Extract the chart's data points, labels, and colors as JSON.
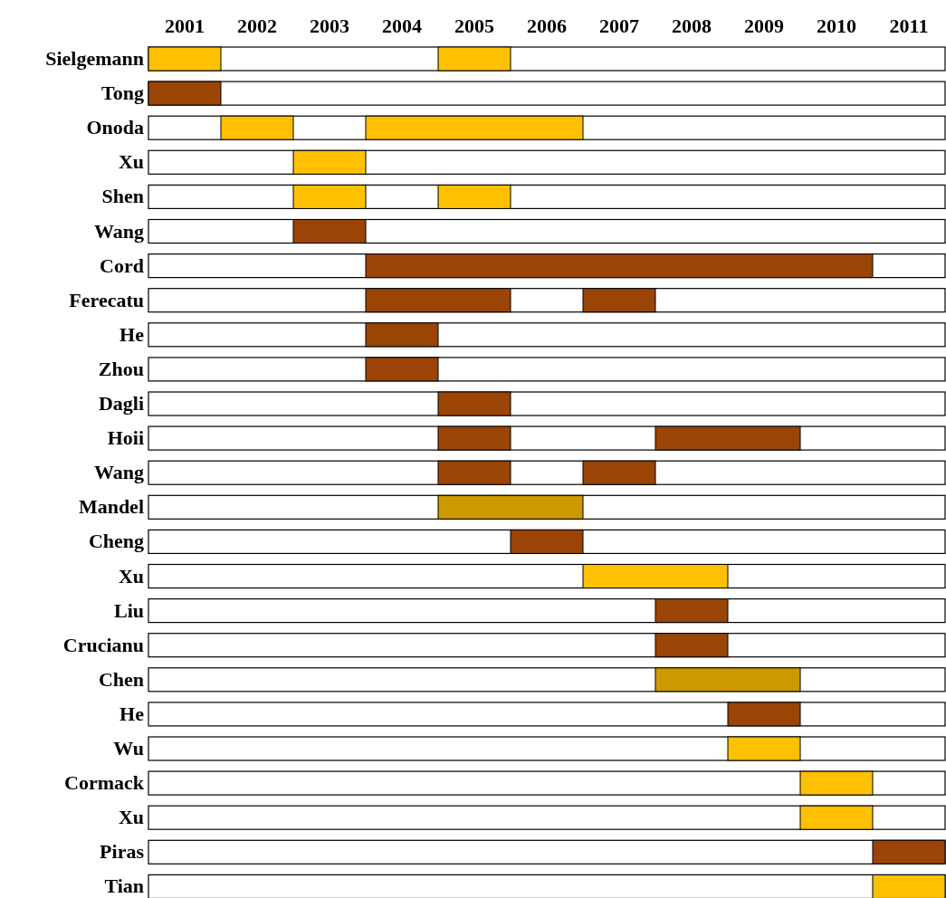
{
  "chart_data": {
    "type": "bar",
    "orientation": "horizontal",
    "categories": [
      "Sielgemann",
      "Tong",
      "Onoda",
      "Xu",
      "Shen",
      "Wang",
      "Cord",
      "Ferecatu",
      "He",
      "Zhou",
      "Dagli",
      "Hoii",
      "Wang",
      "Mandel",
      "Cheng",
      "Xu",
      "Liu",
      "Crucianu",
      "Chen",
      "He",
      "Wu",
      "Cormack",
      "Xu",
      "Piras",
      "Tian"
    ],
    "xlim": [
      2000.5,
      2011.5
    ],
    "xticks": [
      2001,
      2002,
      2003,
      2004,
      2005,
      2006,
      2007,
      2008,
      2009,
      2010,
      2011
    ],
    "grid": false,
    "series": [
      {
        "base": [
          2000.5,
          2000.5,
          2001.5,
          2002.5,
          2002.5,
          2002.5,
          2003.5,
          2003.5,
          2003.5,
          2003.5,
          2004.5,
          2004.5,
          2004.5,
          2004.5,
          2005.5,
          2006.5,
          2007.5,
          2007.5,
          2007.5,
          2008.5,
          2008.5,
          2009.5,
          2009.5,
          2010.5,
          2010.5
        ],
        "values": [
          1,
          1,
          1,
          1,
          1,
          1,
          7,
          2,
          1,
          1,
          1,
          1,
          1,
          2,
          1,
          2,
          1,
          1,
          2,
          1,
          1,
          1,
          1,
          1,
          1
        ],
        "colors": [
          "#ffc000",
          "#9a4506",
          "#ffc000",
          "#ffc000",
          "#ffc000",
          "#9a4506",
          "#9a4506",
          "#9a4506",
          "#9a4506",
          "#9a4506",
          "#9a4506",
          "#9a4506",
          "#9a4506",
          "#cc9900",
          "#9a4506",
          "#ffc000",
          "#9a4506",
          "#9a4506",
          "#cc9900",
          "#9a4506",
          "#ffc000",
          "#ffc000",
          "#ffc000",
          "#9a4506",
          "#ffc000"
        ]
      },
      {
        "base": [
          2004.5,
          null,
          2003.5,
          null,
          2004.5,
          null,
          null,
          2006.5,
          null,
          null,
          null,
          2007.5,
          2006.5,
          null,
          null,
          null,
          null,
          null,
          null,
          null,
          null,
          null,
          null,
          null,
          null
        ],
        "values": [
          1,
          null,
          3,
          null,
          1,
          null,
          null,
          1,
          null,
          null,
          null,
          2,
          1,
          null,
          null,
          null,
          null,
          null,
          null,
          null,
          null,
          null,
          null,
          null,
          null
        ],
        "colors": [
          "#ffc000",
          null,
          "#ffc000",
          null,
          "#ffc000",
          null,
          null,
          "#9a4506",
          null,
          null,
          null,
          "#9a4506",
          "#9a4506",
          null,
          null,
          null,
          null,
          null,
          null,
          null,
          null,
          null,
          null,
          null,
          null
        ]
      }
    ]
  }
}
